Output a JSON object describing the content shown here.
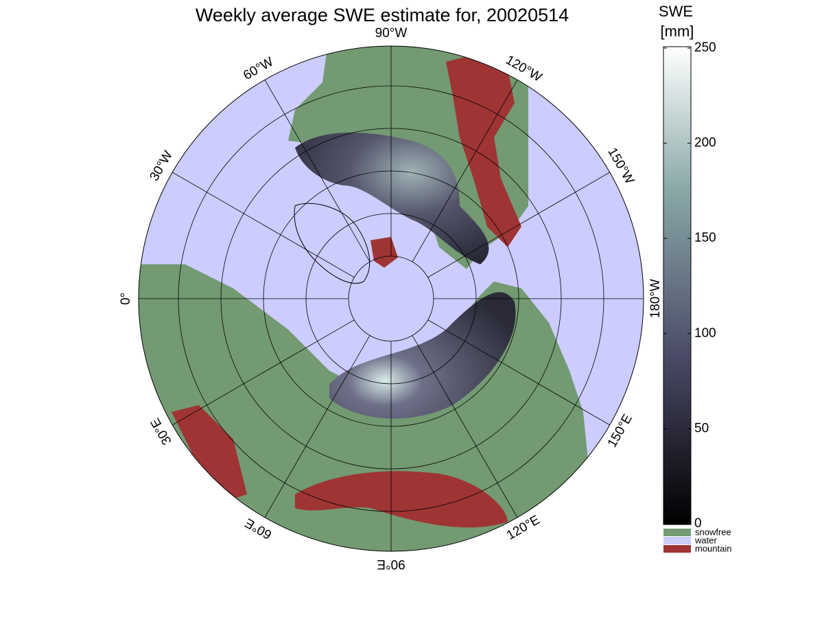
{
  "title": "Weekly average SWE estimate for, 20020514",
  "map": {
    "longitude_labels": [
      "0°",
      "30°W",
      "60°W",
      "90°W",
      "120°W",
      "150°W",
      "180°W",
      "150°E",
      "120°E",
      "90°E",
      "60°E",
      "30°E"
    ]
  },
  "colorbar": {
    "title": [
      "SWE",
      "[mm]"
    ],
    "lim": [
      0,
      250
    ],
    "ticks": [
      0,
      50,
      100,
      150,
      200,
      250
    ]
  },
  "legend": [
    {
      "name": "snowfree",
      "color": "#739a72"
    },
    {
      "name": "water",
      "color": "#ccccff"
    },
    {
      "name": "mountain",
      "color": "#9e3434"
    }
  ]
}
